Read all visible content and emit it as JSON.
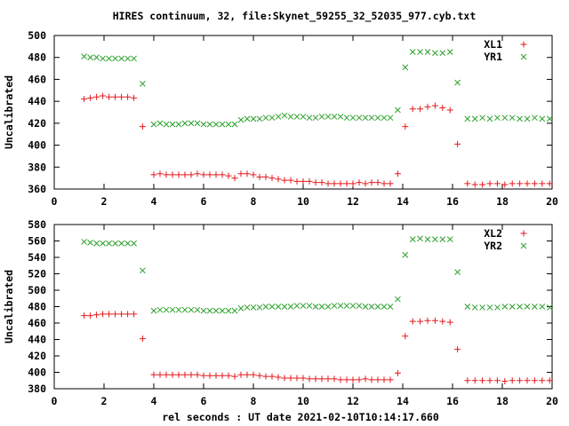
{
  "title": "HIRES continuum, 32, file:Skynet_59255_32_52035_977.cyb.txt",
  "xlabel": "rel seconds : UT date 2021-02-10T10:14:17.660",
  "colors": {
    "red": "#e41a1c",
    "green": "#2ca02c"
  },
  "chart_data": [
    {
      "type": "scatter",
      "ylabel": "Uncalibrated",
      "xlim": [
        0,
        20
      ],
      "ylim": [
        360,
        500
      ],
      "xticks": [
        0,
        2,
        4,
        6,
        8,
        10,
        12,
        14,
        16,
        18,
        20
      ],
      "yticks": [
        360,
        380,
        400,
        420,
        440,
        460,
        480,
        500
      ],
      "legend_position": "top-right",
      "series": [
        {
          "name": "XL1",
          "marker": "plus",
          "color": "#e41a1c",
          "x": [
            1.2,
            1.45,
            1.7,
            1.95,
            2.2,
            2.45,
            2.7,
            2.95,
            3.2,
            3.55,
            4.0,
            4.25,
            4.5,
            4.75,
            5.0,
            5.25,
            5.5,
            5.75,
            6.0,
            6.25,
            6.5,
            6.75,
            7.0,
            7.25,
            7.5,
            7.75,
            8.0,
            8.25,
            8.5,
            8.75,
            9.0,
            9.25,
            9.5,
            9.75,
            10.0,
            10.25,
            10.5,
            10.75,
            11.0,
            11.25,
            11.5,
            11.75,
            12.0,
            12.25,
            12.5,
            12.75,
            13.0,
            13.25,
            13.5,
            13.8,
            14.1,
            14.4,
            14.7,
            15.0,
            15.3,
            15.6,
            15.9,
            16.2,
            16.6,
            16.9,
            17.2,
            17.5,
            17.8,
            18.1,
            18.4,
            18.7,
            19.0,
            19.3,
            19.6,
            19.9
          ],
          "y": [
            442,
            443,
            444,
            445,
            444,
            444,
            444,
            444,
            443,
            417,
            373,
            374,
            373,
            373,
            373,
            373,
            373,
            374,
            373,
            373,
            373,
            373,
            372,
            370,
            374,
            374,
            373,
            371,
            371,
            370,
            369,
            368,
            368,
            367,
            367,
            367,
            366,
            366,
            365,
            365,
            365,
            365,
            365,
            366,
            365,
            366,
            366,
            365,
            365,
            374,
            417,
            433,
            433,
            435,
            436,
            434,
            432,
            401,
            365,
            364,
            364,
            365,
            365,
            364,
            365,
            365,
            365,
            365,
            365,
            365
          ]
        },
        {
          "name": "YR1",
          "marker": "cross",
          "color": "#2ca02c",
          "x": [
            1.2,
            1.45,
            1.7,
            1.95,
            2.2,
            2.45,
            2.7,
            2.95,
            3.2,
            3.55,
            4.0,
            4.25,
            4.5,
            4.75,
            5.0,
            5.25,
            5.5,
            5.75,
            6.0,
            6.25,
            6.5,
            6.75,
            7.0,
            7.25,
            7.5,
            7.75,
            8.0,
            8.25,
            8.5,
            8.75,
            9.0,
            9.25,
            9.5,
            9.75,
            10.0,
            10.25,
            10.5,
            10.75,
            11.0,
            11.25,
            11.5,
            11.75,
            12.0,
            12.25,
            12.5,
            12.75,
            13.0,
            13.25,
            13.5,
            13.8,
            14.1,
            14.4,
            14.7,
            15.0,
            15.3,
            15.6,
            15.9,
            16.2,
            16.6,
            16.9,
            17.2,
            17.5,
            17.8,
            18.1,
            18.4,
            18.7,
            19.0,
            19.3,
            19.6,
            19.9
          ],
          "y": [
            481,
            480,
            480,
            479,
            479,
            479,
            479,
            479,
            479,
            456,
            419,
            420,
            419,
            419,
            419,
            420,
            420,
            420,
            419,
            419,
            419,
            419,
            419,
            419,
            423,
            424,
            424,
            424,
            425,
            425,
            426,
            427,
            426,
            426,
            426,
            425,
            425,
            426,
            426,
            426,
            426,
            425,
            425,
            425,
            425,
            425,
            425,
            425,
            425,
            432,
            471,
            485,
            485,
            485,
            484,
            484,
            485,
            457,
            424,
            424,
            425,
            424,
            425,
            425,
            425,
            424,
            424,
            425,
            424,
            424
          ]
        }
      ]
    },
    {
      "type": "scatter",
      "ylabel": "Uncalibrated",
      "xlim": [
        0,
        20
      ],
      "ylim": [
        380,
        580
      ],
      "xticks": [
        0,
        2,
        4,
        6,
        8,
        10,
        12,
        14,
        16,
        18,
        20
      ],
      "yticks": [
        380,
        400,
        420,
        440,
        460,
        480,
        500,
        520,
        540,
        560,
        580
      ],
      "legend_position": "top-right",
      "series": [
        {
          "name": "XL2",
          "marker": "plus",
          "color": "#e41a1c",
          "x": [
            1.2,
            1.45,
            1.7,
            1.95,
            2.2,
            2.45,
            2.7,
            2.95,
            3.2,
            3.55,
            4.0,
            4.25,
            4.5,
            4.75,
            5.0,
            5.25,
            5.5,
            5.75,
            6.0,
            6.25,
            6.5,
            6.75,
            7.0,
            7.25,
            7.5,
            7.75,
            8.0,
            8.25,
            8.5,
            8.75,
            9.0,
            9.25,
            9.5,
            9.75,
            10.0,
            10.25,
            10.5,
            10.75,
            11.0,
            11.25,
            11.5,
            11.75,
            12.0,
            12.25,
            12.5,
            12.75,
            13.0,
            13.25,
            13.5,
            13.8,
            14.1,
            14.4,
            14.7,
            15.0,
            15.3,
            15.6,
            15.9,
            16.2,
            16.6,
            16.9,
            17.2,
            17.5,
            17.8,
            18.1,
            18.4,
            18.7,
            19.0,
            19.3,
            19.6,
            19.9
          ],
          "y": [
            469,
            469,
            470,
            471,
            471,
            471,
            471,
            471,
            471,
            441,
            397,
            397,
            397,
            397,
            397,
            397,
            397,
            397,
            396,
            396,
            396,
            396,
            396,
            395,
            397,
            397,
            397,
            396,
            395,
            395,
            394,
            393,
            393,
            393,
            393,
            392,
            392,
            392,
            392,
            392,
            391,
            391,
            391,
            391,
            392,
            391,
            391,
            391,
            391,
            399,
            444,
            462,
            462,
            463,
            463,
            462,
            461,
            428,
            390,
            390,
            390,
            390,
            390,
            389,
            390,
            390,
            390,
            390,
            390,
            390
          ]
        },
        {
          "name": "YR2",
          "marker": "cross",
          "color": "#2ca02c",
          "x": [
            1.2,
            1.45,
            1.7,
            1.95,
            2.2,
            2.45,
            2.7,
            2.95,
            3.2,
            3.55,
            4.0,
            4.25,
            4.5,
            4.75,
            5.0,
            5.25,
            5.5,
            5.75,
            6.0,
            6.25,
            6.5,
            6.75,
            7.0,
            7.25,
            7.5,
            7.75,
            8.0,
            8.25,
            8.5,
            8.75,
            9.0,
            9.25,
            9.5,
            9.75,
            10.0,
            10.25,
            10.5,
            10.75,
            11.0,
            11.25,
            11.5,
            11.75,
            12.0,
            12.25,
            12.5,
            12.75,
            13.0,
            13.25,
            13.5,
            13.8,
            14.1,
            14.4,
            14.7,
            15.0,
            15.3,
            15.6,
            15.9,
            16.2,
            16.6,
            16.9,
            17.2,
            17.5,
            17.8,
            18.1,
            18.4,
            18.7,
            19.0,
            19.3,
            19.6,
            19.9
          ],
          "y": [
            559,
            558,
            557,
            557,
            557,
            557,
            557,
            557,
            557,
            524,
            475,
            476,
            476,
            476,
            476,
            476,
            476,
            476,
            475,
            475,
            475,
            475,
            475,
            475,
            478,
            479,
            479,
            479,
            480,
            480,
            480,
            480,
            480,
            481,
            481,
            481,
            480,
            480,
            480,
            481,
            481,
            481,
            481,
            481,
            480,
            480,
            480,
            480,
            480,
            489,
            543,
            562,
            563,
            562,
            562,
            562,
            562,
            522,
            480,
            479,
            479,
            479,
            479,
            480,
            480,
            480,
            480,
            480,
            480,
            479
          ]
        }
      ]
    }
  ]
}
